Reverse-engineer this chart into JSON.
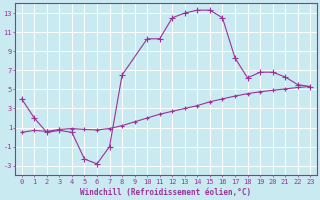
{
  "xlabel": "Windchill (Refroidissement éolien,°C)",
  "bg_color": "#c8eaf0",
  "grid_color": "#b8d8e0",
  "line_color": "#993399",
  "x_main": [
    0,
    1,
    2,
    3,
    4,
    5,
    6,
    7,
    8,
    10,
    11,
    12,
    13,
    14,
    15,
    16,
    17,
    18,
    19,
    20,
    21,
    22,
    23
  ],
  "y_main": [
    4.0,
    2.0,
    0.5,
    0.7,
    0.5,
    -2.3,
    -2.8,
    -1.0,
    6.5,
    10.3,
    10.3,
    12.5,
    13.0,
    13.3,
    13.3,
    12.5,
    8.3,
    6.2,
    6.8,
    6.8,
    6.3,
    5.5,
    5.3
  ],
  "x_trend": [
    0,
    1,
    2,
    3,
    4,
    5,
    6,
    7,
    8,
    9,
    10,
    11,
    12,
    13,
    14,
    15,
    16,
    17,
    18,
    19,
    20,
    21,
    22,
    23
  ],
  "y_trend": [
    0.5,
    0.7,
    0.6,
    0.8,
    0.9,
    0.8,
    0.75,
    0.9,
    1.2,
    1.6,
    2.0,
    2.4,
    2.7,
    3.0,
    3.3,
    3.7,
    4.0,
    4.3,
    4.55,
    4.75,
    4.9,
    5.05,
    5.2,
    5.3
  ],
  "ylim": [
    -4,
    14
  ],
  "xlim": [
    -0.5,
    23.5
  ],
  "yticks": [
    -3,
    -1,
    1,
    3,
    5,
    7,
    9,
    11,
    13
  ],
  "xticks": [
    0,
    1,
    2,
    3,
    4,
    5,
    6,
    7,
    8,
    9,
    10,
    11,
    12,
    13,
    14,
    15,
    16,
    17,
    18,
    19,
    20,
    21,
    22,
    23
  ],
  "tick_fontsize": 5,
  "xlabel_fontsize": 5.5
}
